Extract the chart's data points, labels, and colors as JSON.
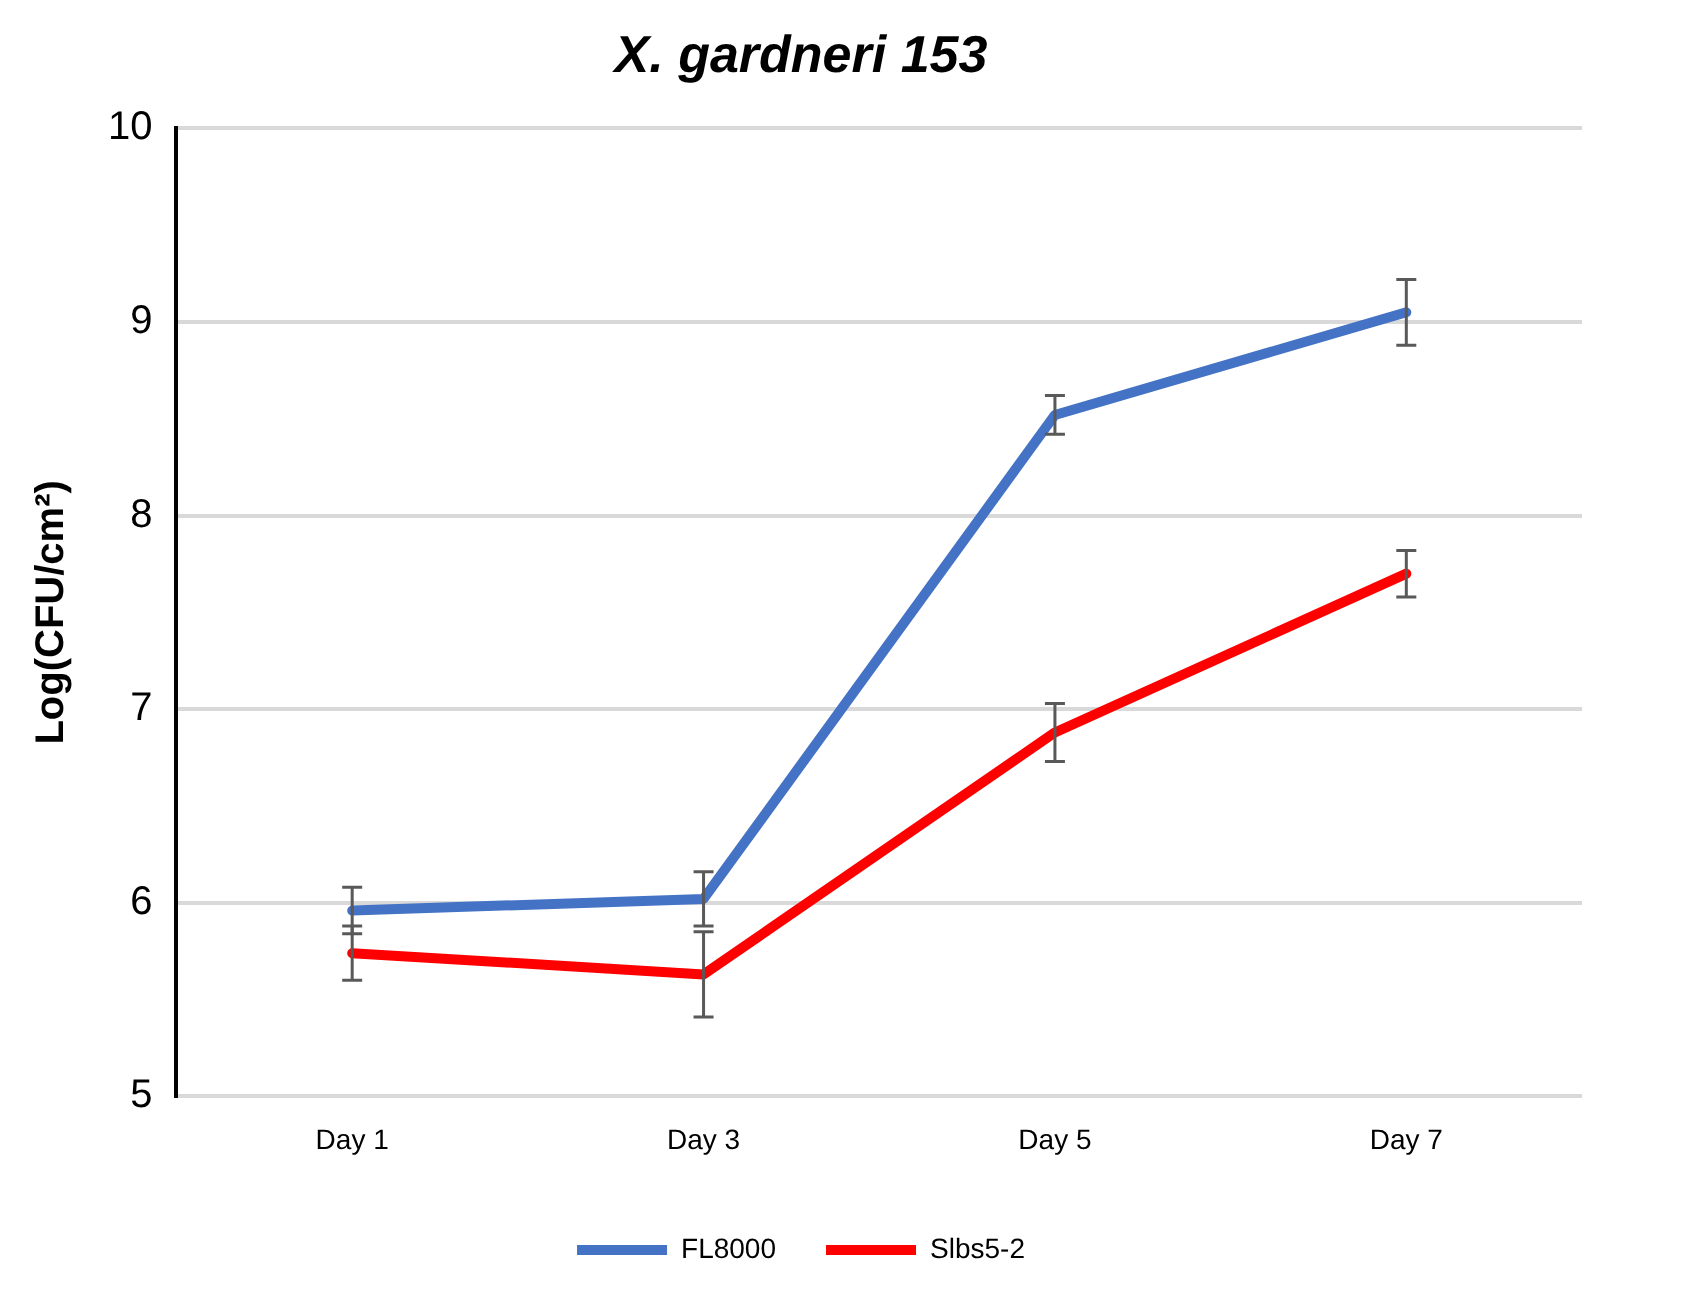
{
  "chart_data": {
    "type": "line",
    "title": "X. gardneri 153",
    "ylabel": "Log(CFU/cm²)",
    "categories": [
      "Day 1",
      "Day 3",
      "Day 5",
      "Day 7"
    ],
    "series": [
      {
        "name": "FL8000",
        "color": "#4472c4",
        "values": [
          5.96,
          6.02,
          8.52,
          9.05
        ],
        "errors": [
          0.12,
          0.14,
          0.1,
          0.17
        ]
      },
      {
        "name": "Slbs5-2",
        "color": "#ff0000",
        "values": [
          5.74,
          5.63,
          6.88,
          7.7
        ],
        "errors": [
          0.14,
          0.22,
          0.15,
          0.12
        ]
      }
    ],
    "ylim": [
      5,
      10
    ],
    "yticks": [
      5,
      6,
      7,
      8,
      9,
      10
    ],
    "grid": "y",
    "legend": "bottom",
    "marker": "none",
    "line_style": "solid"
  }
}
